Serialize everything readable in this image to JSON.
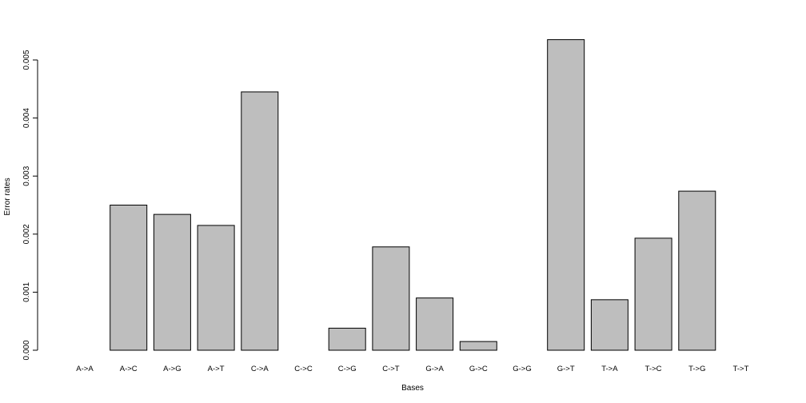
{
  "chart_data": {
    "type": "bar",
    "title": "",
    "xlabel": "Bases",
    "ylabel": "Error rates",
    "categories": [
      "A->A",
      "A->C",
      "A->G",
      "A->T",
      "C->A",
      "C->C",
      "C->G",
      "C->T",
      "G->A",
      "G->C",
      "G->G",
      "G->T",
      "T->A",
      "T->C",
      "T->G",
      "T->T"
    ],
    "values": [
      0,
      0.0025,
      0.00234,
      0.00215,
      0.00445,
      0,
      0.00038,
      0.00178,
      0.0009,
      0.00015,
      0,
      0.00535,
      0.00087,
      0.00193,
      0.00274,
      0
    ],
    "yticks": [
      "0.000",
      "0.001",
      "0.002",
      "0.003",
      "0.004",
      "0.005"
    ],
    "ylim": [
      0,
      0.005
    ],
    "grid": false,
    "colors": {
      "bar_fill": "#bebebe",
      "bar_stroke": "#000000"
    }
  }
}
